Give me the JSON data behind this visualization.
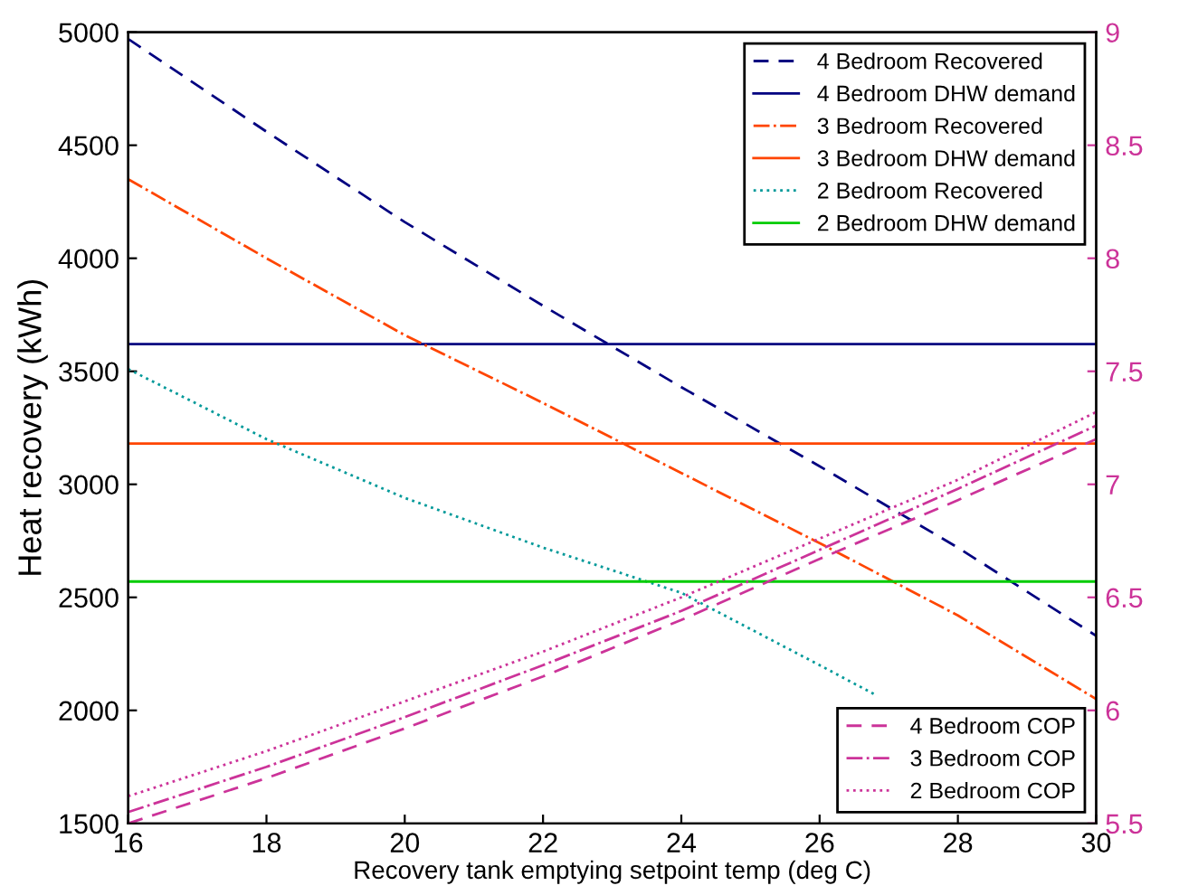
{
  "chart_data": {
    "type": "line",
    "xlabel": "Recovery tank emptying setpoint temp (deg C)",
    "ylabel": "Heat recovery (kWh)",
    "xlim": [
      16,
      30
    ],
    "xticks": [
      16,
      18,
      20,
      22,
      24,
      26,
      28,
      30
    ],
    "ylim": [
      1500,
      5000
    ],
    "yticks": [
      1500,
      2000,
      2500,
      3000,
      3500,
      4000,
      4500,
      5000
    ],
    "y2lim": [
      5.5,
      9
    ],
    "y2ticks": [
      5.5,
      6,
      6.5,
      7,
      7.5,
      8,
      8.5,
      9
    ],
    "grid": false,
    "legend": "top right",
    "marker": "none",
    "series": [
      {
        "name": "4 Bedroom Recovered",
        "color": "#000080",
        "line_style": "dashed",
        "x": [
          16,
          18,
          20,
          22,
          24,
          26,
          28,
          30
        ],
        "values": [
          4970,
          4560,
          4160,
          3790,
          3430,
          3080,
          2720,
          2330
        ]
      },
      {
        "name": "4 Bedroom DHW demand",
        "color": "#000080",
        "line_style": "solid",
        "x": [
          16,
          30
        ],
        "values": [
          3620,
          3620
        ]
      },
      {
        "name": "3 Bedroom Recovered",
        "color": "#ff4500",
        "line_style": "dashdot",
        "x": [
          16,
          18,
          20,
          22,
          24,
          26,
          28,
          30
        ],
        "values": [
          4350,
          4000,
          3660,
          3360,
          3050,
          2740,
          2420,
          2050
        ]
      },
      {
        "name": "3 Bedroom DHW demand",
        "color": "#ff4500",
        "line_style": "solid",
        "x": [
          16,
          30
        ],
        "values": [
          3180,
          3180
        ]
      },
      {
        "name": "2 Bedroom Recovered",
        "color": "#009999",
        "line_style": "dotted",
        "x": [
          16,
          18,
          20,
          22,
          24,
          26,
          26.8
        ],
        "values": [
          3510,
          3200,
          2940,
          2720,
          2520,
          2200,
          2070
        ]
      },
      {
        "name": "2 Bedroom DHW demand",
        "color": "#00cc00",
        "line_style": "solid",
        "x": [
          16,
          30
        ],
        "values": [
          2570,
          2570
        ]
      },
      {
        "name": "4 Bedroom COP",
        "color": "#cc3399",
        "line_style": "dashed",
        "axis": "y2",
        "x": [
          16,
          18,
          20,
          22,
          24,
          26,
          28,
          30
        ],
        "values": [
          5.5,
          5.7,
          5.92,
          6.15,
          6.4,
          6.67,
          6.93,
          7.2
        ]
      },
      {
        "name": "3 Bedroom COP",
        "color": "#cc3399",
        "line_style": "dashdot",
        "axis": "y2",
        "x": [
          16,
          18,
          20,
          22,
          24,
          26,
          28,
          30
        ],
        "values": [
          5.55,
          5.75,
          5.97,
          6.2,
          6.44,
          6.71,
          6.98,
          7.26
        ]
      },
      {
        "name": "2 Bedroom COP",
        "color": "#cc3399",
        "line_style": "dotted",
        "axis": "y2",
        "x": [
          16,
          18,
          20,
          22,
          24,
          26,
          28,
          30
        ],
        "values": [
          5.62,
          5.82,
          6.04,
          6.26,
          6.5,
          6.76,
          7.02,
          7.32
        ]
      }
    ]
  }
}
